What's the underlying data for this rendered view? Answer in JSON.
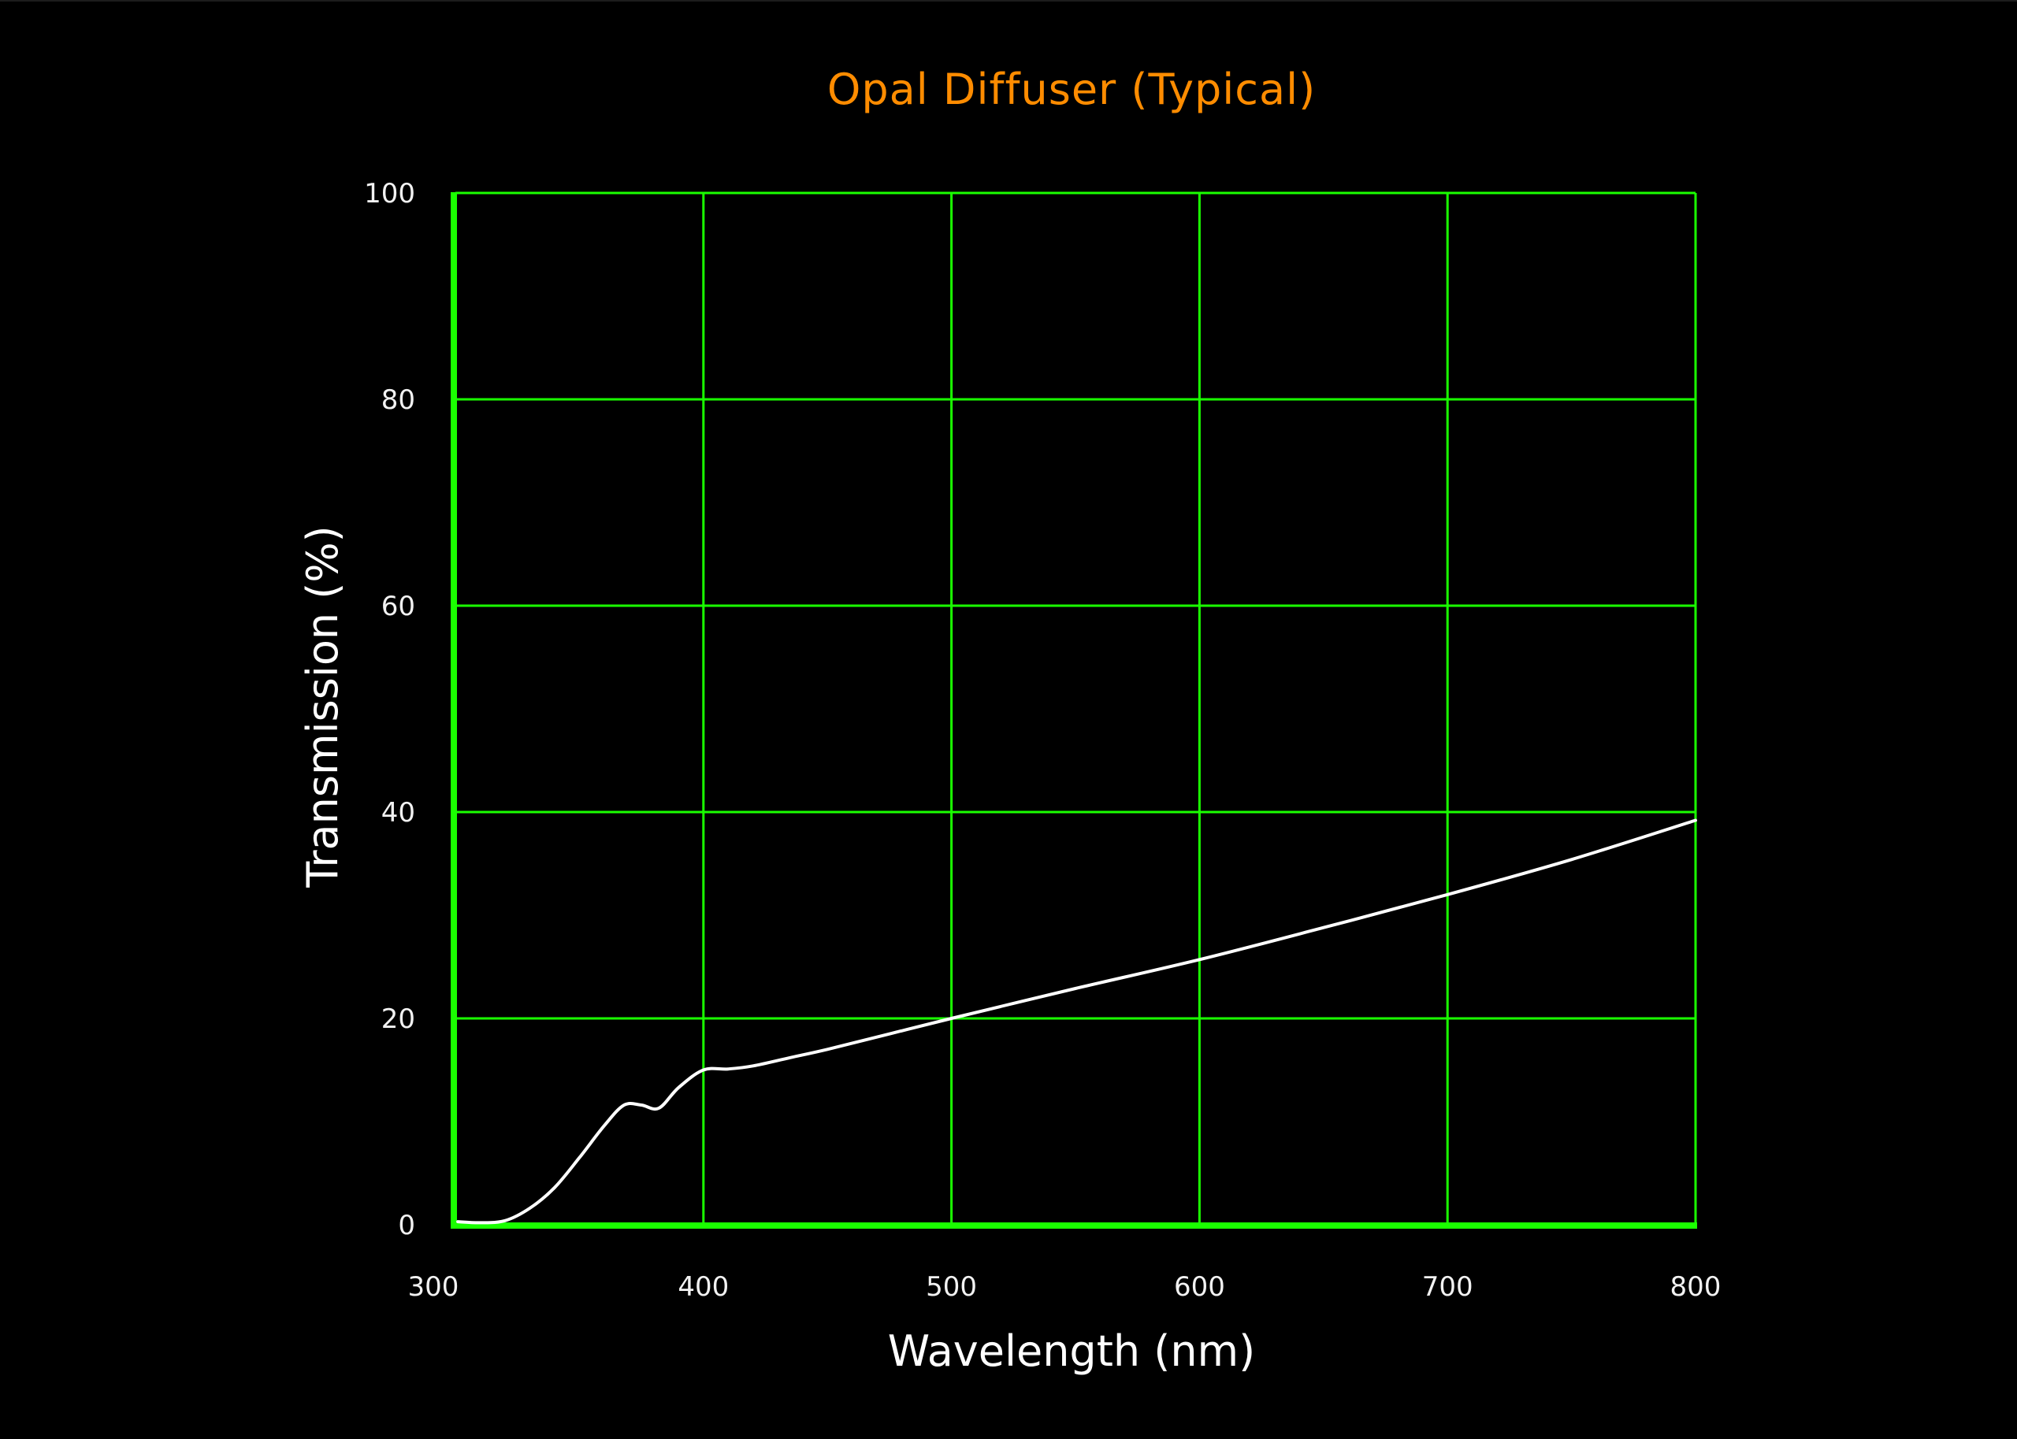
{
  "colors": {
    "background": "#000000",
    "title": "#ff8c00",
    "grid": "#1aff00",
    "axis": "#1aff00",
    "curve": "#ffffff",
    "tick_text": "#f2f2f2"
  },
  "chart_data": {
    "type": "line",
    "title": "Opal Diffuser (Typical)",
    "xlabel": "Wavelength (nm)",
    "ylabel": "Transmission (%)",
    "xlim": [
      300,
      800
    ],
    "ylim": [
      0,
      100
    ],
    "xticks": [
      "300",
      "400",
      "500",
      "600",
      "700",
      "800"
    ],
    "yticks": [
      "0",
      "20",
      "40",
      "60",
      "80",
      "100"
    ],
    "grid": true,
    "legend": null,
    "series": [
      {
        "name": "Opal Diffuser",
        "x": [
          301,
          310,
          320,
          330,
          340,
          350,
          360,
          368,
          375,
          382,
          390,
          400,
          410,
          420,
          435,
          450,
          475,
          500,
          550,
          600,
          650,
          700,
          750,
          800
        ],
        "y": [
          0.3,
          0.2,
          0.4,
          1.6,
          3.6,
          6.5,
          9.6,
          11.6,
          11.6,
          11.3,
          13.3,
          15.0,
          15.1,
          15.4,
          16.2,
          17.0,
          18.5,
          20.0,
          22.9,
          25.7,
          28.8,
          32.0,
          35.4,
          39.2
        ]
      }
    ]
  }
}
